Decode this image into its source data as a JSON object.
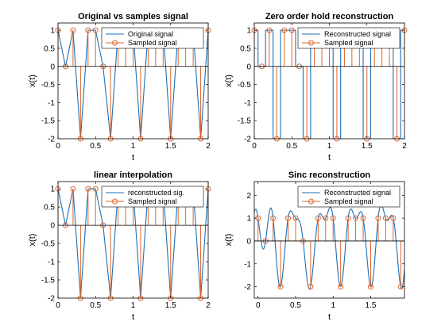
{
  "colors": {
    "signal": "#1f6fb4",
    "samples": "#e0632a",
    "axis": "#000000"
  },
  "samples": {
    "t": [
      0,
      0.1,
      0.2,
      0.3,
      0.4,
      0.5,
      0.6,
      0.7,
      0.8,
      0.9,
      1.0,
      1.1,
      1.2,
      1.3,
      1.4,
      1.5,
      1.6,
      1.7,
      1.8,
      1.9,
      2.0
    ],
    "x": [
      1,
      0,
      1,
      -2,
      1,
      1,
      0,
      -2,
      1,
      1,
      1,
      -2,
      1,
      1,
      1,
      -2,
      1,
      1,
      1,
      -2,
      1
    ]
  },
  "chart_data": [
    {
      "id": "original",
      "type": "line",
      "title": "Original vs samples signal",
      "xlabel": "t",
      "ylabel": "x(t)",
      "xlim": [
        0,
        2
      ],
      "ylim": [
        -2,
        1.2
      ],
      "xticks": [
        "0",
        "0.5",
        "1",
        "1.5",
        "2"
      ],
      "xtick_values": [
        0,
        0.5,
        1,
        1.5,
        2
      ],
      "yticks": [
        "-2",
        "-1.5",
        "-1",
        "-0.5",
        "0",
        "0.5",
        "1"
      ],
      "ytick_values": [
        -2,
        -1.5,
        -1,
        -0.5,
        0,
        0.5,
        1
      ],
      "legend": [
        "Original signal",
        "Sampled signal"
      ],
      "legend_position": "top-right",
      "grid": false,
      "series": [
        {
          "name": "Original signal",
          "style": "line"
        },
        {
          "name": "Sampled signal",
          "style": "stem"
        }
      ]
    },
    {
      "id": "zoh",
      "type": "line",
      "title": "Zero order hold reconstruction",
      "xlabel": "t",
      "ylabel": "x(t)",
      "xlim": [
        0,
        2
      ],
      "ylim": [
        -2,
        1.2
      ],
      "xticks": [
        "0",
        "0.5",
        "1",
        "1.5",
        "2"
      ],
      "xtick_values": [
        0,
        0.5,
        1,
        1.5,
        2
      ],
      "yticks": [
        "-2",
        "-1.5",
        "-1",
        "-0.5",
        "0",
        "0.5",
        "1"
      ],
      "ytick_values": [
        -2,
        -1.5,
        -1,
        -0.5,
        0,
        0.5,
        1
      ],
      "legend": [
        "Reconstructed signal",
        "Sampled signal"
      ],
      "legend_position": "top-right",
      "grid": false,
      "series": [
        {
          "name": "Reconstructed signal",
          "style": "step"
        },
        {
          "name": "Sampled signal",
          "style": "stem"
        }
      ]
    },
    {
      "id": "linear",
      "type": "line",
      "title": "linear interpolation",
      "xlabel": "t",
      "ylabel": "x(t)",
      "xlim": [
        0,
        2
      ],
      "ylim": [
        -2,
        1.2
      ],
      "xticks": [
        "0",
        "0.5",
        "1",
        "1.5",
        "2"
      ],
      "xtick_values": [
        0,
        0.5,
        1,
        1.5,
        2
      ],
      "yticks": [
        "-2",
        "-1.5",
        "-1",
        "-0.5",
        "0",
        "0.5",
        "1"
      ],
      "ytick_values": [
        -2,
        -1.5,
        -1,
        -0.5,
        0,
        0.5,
        1
      ],
      "legend": [
        "reconstructed sig.",
        "Sampled signal"
      ],
      "legend_position": "top-right",
      "grid": false,
      "series": [
        {
          "name": "reconstructed sig.",
          "style": "line"
        },
        {
          "name": "Sampled signal",
          "style": "stem"
        }
      ]
    },
    {
      "id": "sinc",
      "type": "line",
      "title": "Sinc reconstruction",
      "xlabel": "t",
      "ylabel": "x(t)",
      "xlim": [
        -0.05,
        1.95
      ],
      "ylim": [
        -2.5,
        2.6
      ],
      "xticks": [
        "0",
        "0.5",
        "1",
        "1.5"
      ],
      "xtick_values": [
        0,
        0.5,
        1,
        1.5
      ],
      "yticks": [
        "-2",
        "-1",
        "0",
        "1",
        "2"
      ],
      "ytick_values": [
        -2,
        -1,
        0,
        1,
        2
      ],
      "legend": [
        "Reconstructed signal",
        "Sampled signal"
      ],
      "legend_position": "top-right",
      "grid": false,
      "series": [
        {
          "name": "Reconstructed signal",
          "style": "sinc"
        },
        {
          "name": "Sampled signal",
          "style": "stem"
        }
      ]
    }
  ]
}
